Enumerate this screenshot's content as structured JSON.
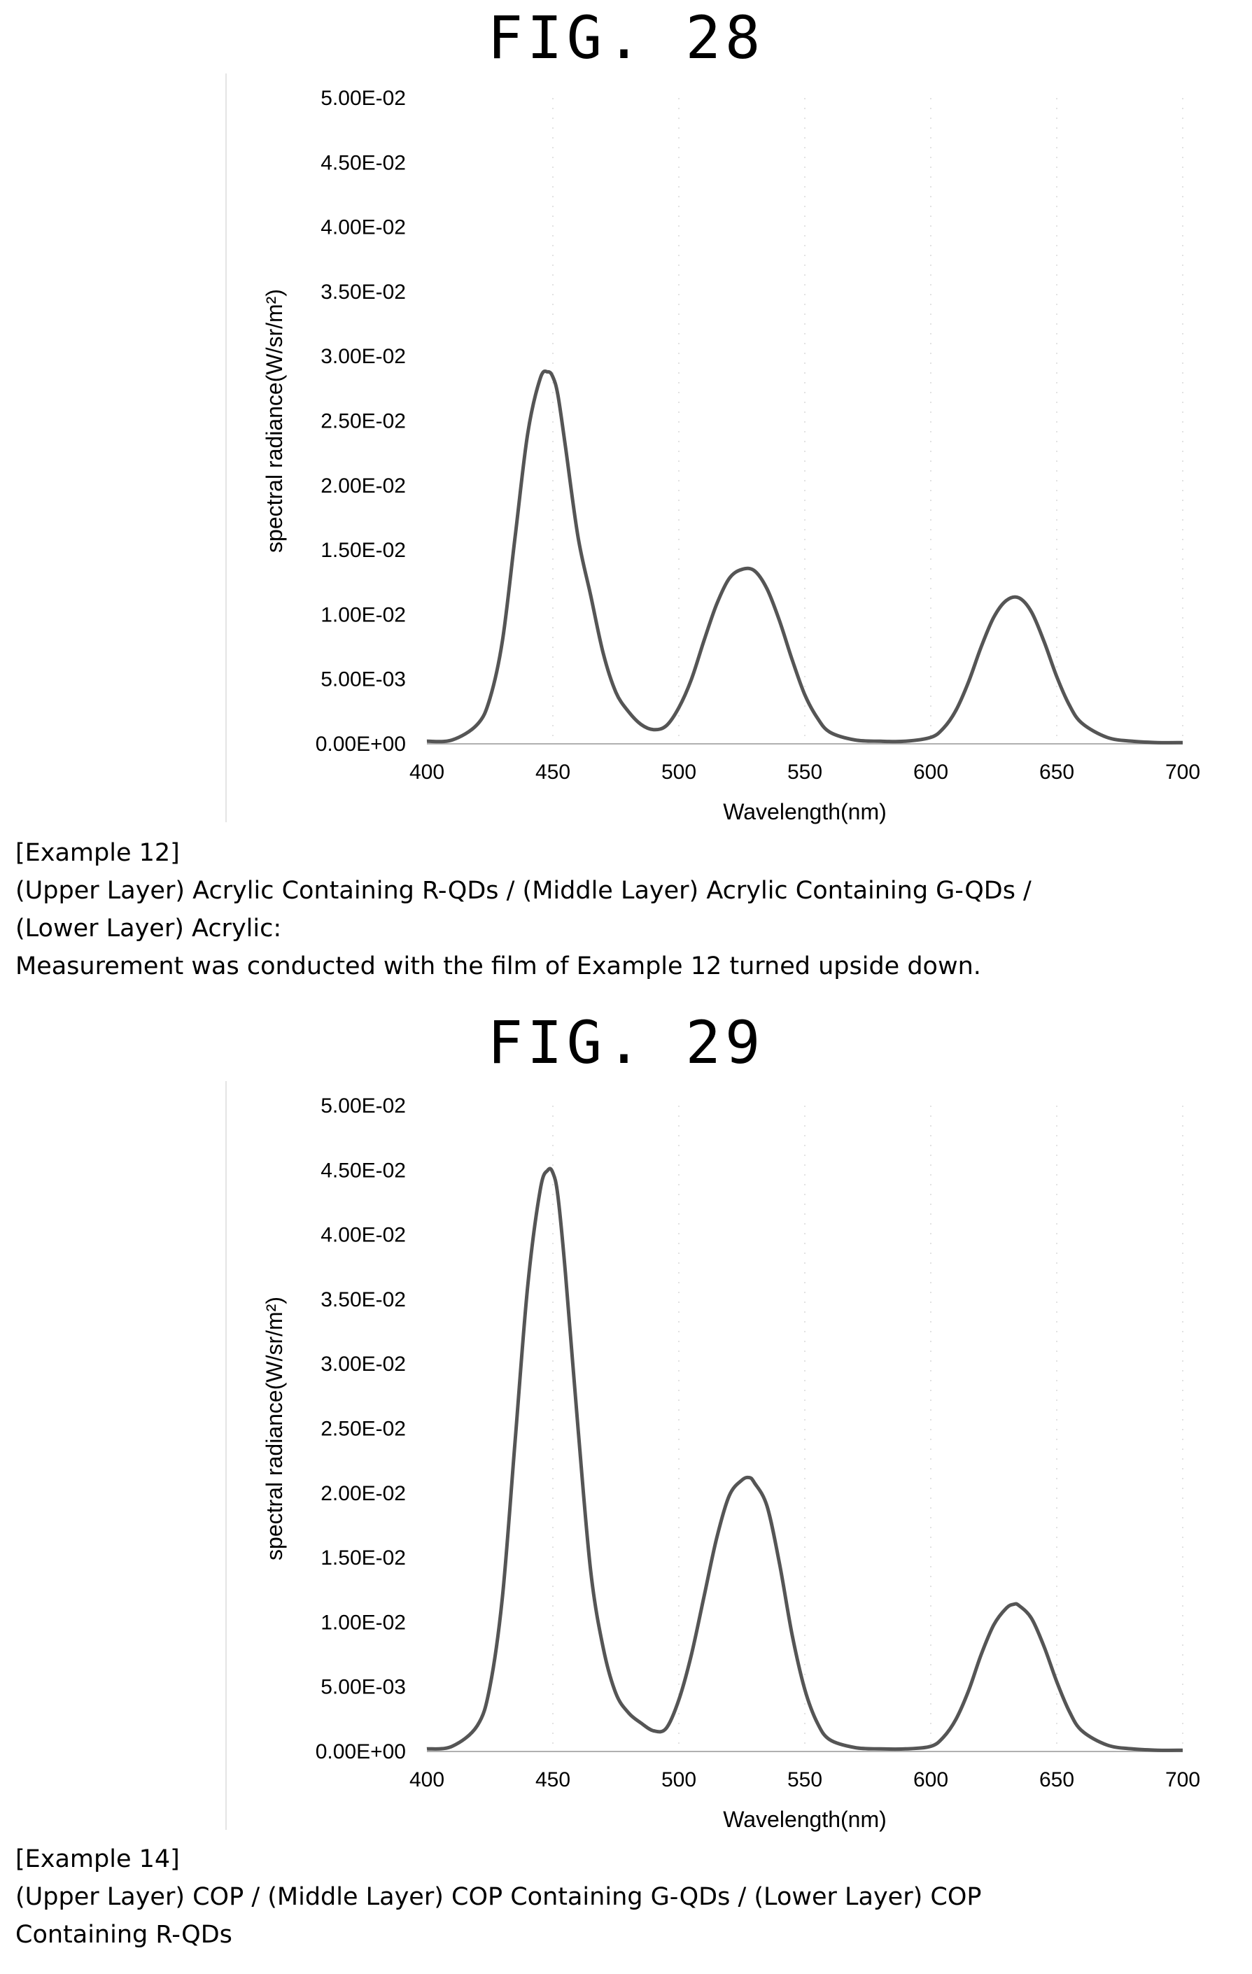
{
  "figures": [
    {
      "title": "FIG. 28",
      "caption": [
        "[Example 12]",
        "(Upper Layer) Acrylic Containing R-QDs / (Middle Layer) Acrylic Containing G-QDs /",
        "(Lower Layer) Acrylic:",
        "Measurement was conducted with the film of Example 12 turned upside down."
      ]
    },
    {
      "title": "FIG. 29",
      "caption": [
        "[Example 14]",
        "(Upper Layer) COP / (Middle Layer) COP Containing G-QDs / (Lower Layer) COP",
        "Containing R-QDs"
      ]
    }
  ],
  "chart_data": [
    {
      "type": "line",
      "xlabel": "Wavelength(nm)",
      "ylabel": "spectral radiance(W/sr/m²)",
      "xlim": [
        400,
        700
      ],
      "ylim": [
        0,
        0.05
      ],
      "x_ticks": [
        400,
        450,
        500,
        550,
        600,
        650,
        700
      ],
      "x_tick_labels": [
        "400",
        "450",
        "500",
        "550",
        "600",
        "650",
        "700"
      ],
      "y_ticks": [
        0,
        0.005,
        0.01,
        0.015,
        0.02,
        0.025,
        0.03,
        0.035,
        0.04,
        0.045,
        0.05
      ],
      "y_tick_labels": [
        "0.00E+00",
        "5.00E-03",
        "1.00E-02",
        "1.50E-02",
        "2.00E-02",
        "2.50E-02",
        "3.00E-02",
        "3.50E-02",
        "4.00E-02",
        "4.50E-02",
        "5.00E-02"
      ],
      "grid": "vertical",
      "line_color": "#555555",
      "series": [
        {
          "x": [
            400,
            410,
            420,
            425,
            430,
            435,
            440,
            445,
            448,
            450,
            452,
            455,
            460,
            465,
            470,
            475,
            480,
            485,
            490,
            495,
            500,
            505,
            510,
            515,
            520,
            525,
            530,
            535,
            540,
            545,
            550,
            555,
            560,
            570,
            580,
            590,
            600,
            605,
            610,
            615,
            620,
            625,
            630,
            635,
            640,
            645,
            650,
            655,
            660,
            670,
            680,
            690,
            700
          ],
          "y": [
            0.0002,
            0.0003,
            0.0015,
            0.0035,
            0.008,
            0.016,
            0.024,
            0.0283,
            0.0288,
            0.0284,
            0.027,
            0.023,
            0.016,
            0.0115,
            0.007,
            0.004,
            0.0025,
            0.0015,
            0.0011,
            0.0014,
            0.0028,
            0.005,
            0.008,
            0.0108,
            0.0128,
            0.0135,
            0.0134,
            0.012,
            0.0095,
            0.0065,
            0.0038,
            0.002,
            0.0009,
            0.0003,
            0.0002,
            0.0002,
            0.0005,
            0.0012,
            0.0026,
            0.0048,
            0.0075,
            0.0098,
            0.0111,
            0.0113,
            0.0102,
            0.0079,
            0.0052,
            0.003,
            0.0016,
            0.0005,
            0.0002,
            0.0001,
            0.0001
          ]
        }
      ]
    },
    {
      "type": "line",
      "xlabel": "Wavelength(nm)",
      "ylabel": "spectral radiance(W/sr/m²)",
      "xlim": [
        400,
        700
      ],
      "ylim": [
        0,
        0.05
      ],
      "x_ticks": [
        400,
        450,
        500,
        550,
        600,
        650,
        700
      ],
      "x_tick_labels": [
        "400",
        "450",
        "500",
        "550",
        "600",
        "650",
        "700"
      ],
      "y_ticks": [
        0,
        0.005,
        0.01,
        0.015,
        0.02,
        0.025,
        0.03,
        0.035,
        0.04,
        0.045,
        0.05
      ],
      "y_tick_labels": [
        "0.00E+00",
        "5.00E-03",
        "1.00E-02",
        "1.50E-02",
        "2.00E-02",
        "2.50E-02",
        "3.00E-02",
        "3.50E-02",
        "4.00E-02",
        "4.50E-02",
        "5.00E-02"
      ],
      "grid": "vertical",
      "line_color": "#555555",
      "series": [
        {
          "x": [
            400,
            410,
            420,
            425,
            430,
            435,
            440,
            445,
            448,
            450,
            452,
            455,
            460,
            465,
            470,
            475,
            480,
            485,
            490,
            495,
            500,
            505,
            510,
            515,
            520,
            525,
            528,
            530,
            535,
            540,
            545,
            550,
            555,
            560,
            570,
            580,
            590,
            600,
            605,
            610,
            615,
            620,
            625,
            630,
            633,
            635,
            640,
            645,
            650,
            655,
            660,
            670,
            680,
            690,
            700
          ],
          "y": [
            0.0002,
            0.0004,
            0.002,
            0.005,
            0.012,
            0.024,
            0.036,
            0.0435,
            0.045,
            0.0448,
            0.043,
            0.037,
            0.025,
            0.014,
            0.008,
            0.0045,
            0.003,
            0.0022,
            0.0016,
            0.0018,
            0.004,
            0.0075,
            0.012,
            0.0165,
            0.0198,
            0.021,
            0.0212,
            0.0208,
            0.019,
            0.0145,
            0.009,
            0.0048,
            0.0022,
            0.0009,
            0.0003,
            0.0002,
            0.0002,
            0.0004,
            0.0011,
            0.0025,
            0.0047,
            0.0075,
            0.0098,
            0.0111,
            0.0114,
            0.0113,
            0.0103,
            0.0081,
            0.0054,
            0.0031,
            0.0016,
            0.0005,
            0.0002,
            0.0001,
            0.0001
          ]
        }
      ]
    }
  ]
}
